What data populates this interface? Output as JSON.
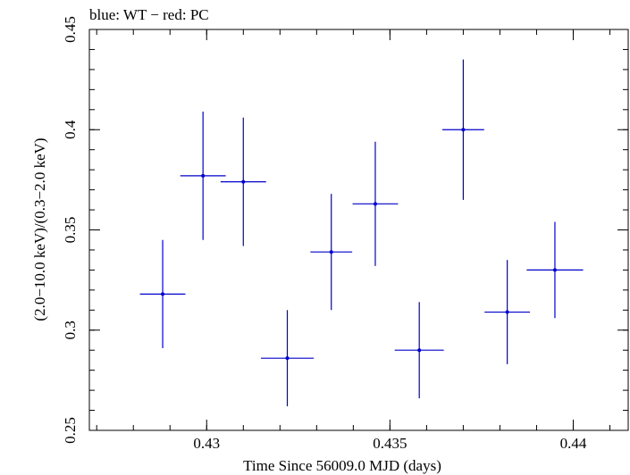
{
  "chart_data": {
    "type": "scatter",
    "title": "blue: WT − red: PC",
    "xlabel": "Time Since 56009.0 MJD (days)",
    "ylabel": "(2.0−10.0 keV)/(0.3−2.0 keV)",
    "xlim": [
      0.4268,
      0.4415
    ],
    "ylim": [
      0.25,
      0.45
    ],
    "x_ticks": [
      {
        "value": 0.43,
        "label": "0.43"
      },
      {
        "value": 0.435,
        "label": "0.435"
      },
      {
        "value": 0.44,
        "label": "0.44"
      }
    ],
    "y_ticks": [
      {
        "value": 0.25,
        "label": "0.25"
      },
      {
        "value": 0.3,
        "label": "0.3"
      },
      {
        "value": 0.35,
        "label": "0.35"
      },
      {
        "value": 0.4,
        "label": "0.4"
      },
      {
        "value": 0.45,
        "label": "0.45"
      }
    ],
    "x_minor_step": 0.001,
    "y_minor_step": 0.01,
    "grid": false,
    "series": [
      {
        "color": "#0000cc",
        "points": [
          {
            "x": 0.4288,
            "xerr": 0.00062,
            "y": 0.318,
            "yerr": 0.027
          },
          {
            "x": 0.4299,
            "xerr": 0.00062,
            "y": 0.377,
            "yerr": 0.032
          },
          {
            "x": 0.431,
            "xerr": 0.00062,
            "y": 0.374,
            "yerr": 0.032
          },
          {
            "x": 0.4322,
            "xerr": 0.00072,
            "y": 0.286,
            "yerr": 0.024
          },
          {
            "x": 0.4334,
            "xerr": 0.00057,
            "y": 0.339,
            "yerr": 0.029
          },
          {
            "x": 0.4346,
            "xerr": 0.00062,
            "y": 0.363,
            "yerr": 0.031
          },
          {
            "x": 0.4358,
            "xerr": 0.00067,
            "y": 0.29,
            "yerr": 0.024
          },
          {
            "x": 0.437,
            "xerr": 0.00057,
            "y": 0.4,
            "yerr": 0.035
          },
          {
            "x": 0.4382,
            "xerr": 0.00062,
            "y": 0.309,
            "yerr": 0.026
          },
          {
            "x": 0.4395,
            "xerr": 0.00077,
            "y": 0.33,
            "yerr": 0.024
          }
        ]
      }
    ]
  }
}
